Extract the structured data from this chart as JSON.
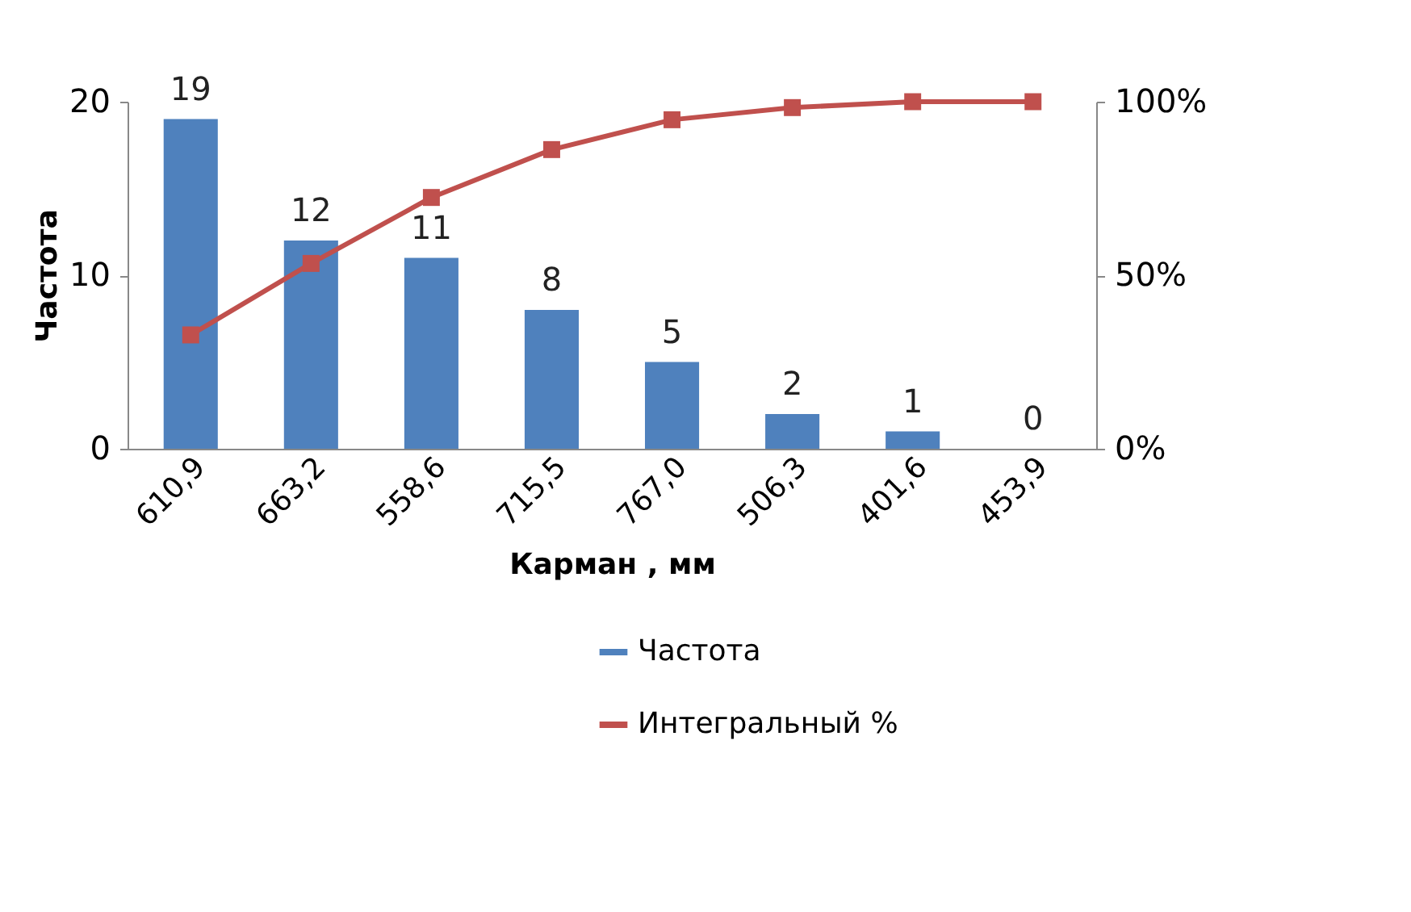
{
  "chart_data": {
    "type": "bar",
    "xlabel": "Карман , мм",
    "ylabel": "Частота",
    "categories": [
      "610,9",
      "663,2",
      "558,6",
      "715,5",
      "767,0",
      "506,3",
      "401,6",
      "453,9"
    ],
    "series": [
      {
        "name": "Частота",
        "color": "#4f81bd",
        "values": [
          19,
          12,
          11,
          8,
          5,
          2,
          1,
          0
        ],
        "value_labels": [
          "19",
          "12",
          "11",
          "8",
          "5",
          "2",
          "1",
          "0"
        ]
      },
      {
        "name": "Интегральный %",
        "type": "line",
        "axis": "y2",
        "color": "#c0504d",
        "marker": "square",
        "values": [
          32.8,
          53.4,
          72.4,
          86.2,
          94.8,
          98.3,
          100,
          100
        ]
      }
    ],
    "ylim": [
      0,
      20
    ],
    "yticks": [
      0,
      10,
      20
    ],
    "y2lim": [
      0,
      100
    ],
    "y2ticks": [
      {
        "value": 0,
        "label": "0%"
      },
      {
        "value": 50,
        "label": "50%"
      },
      {
        "value": 100,
        "label": "100%"
      }
    ],
    "legend": "bottom",
    "grid": false
  }
}
